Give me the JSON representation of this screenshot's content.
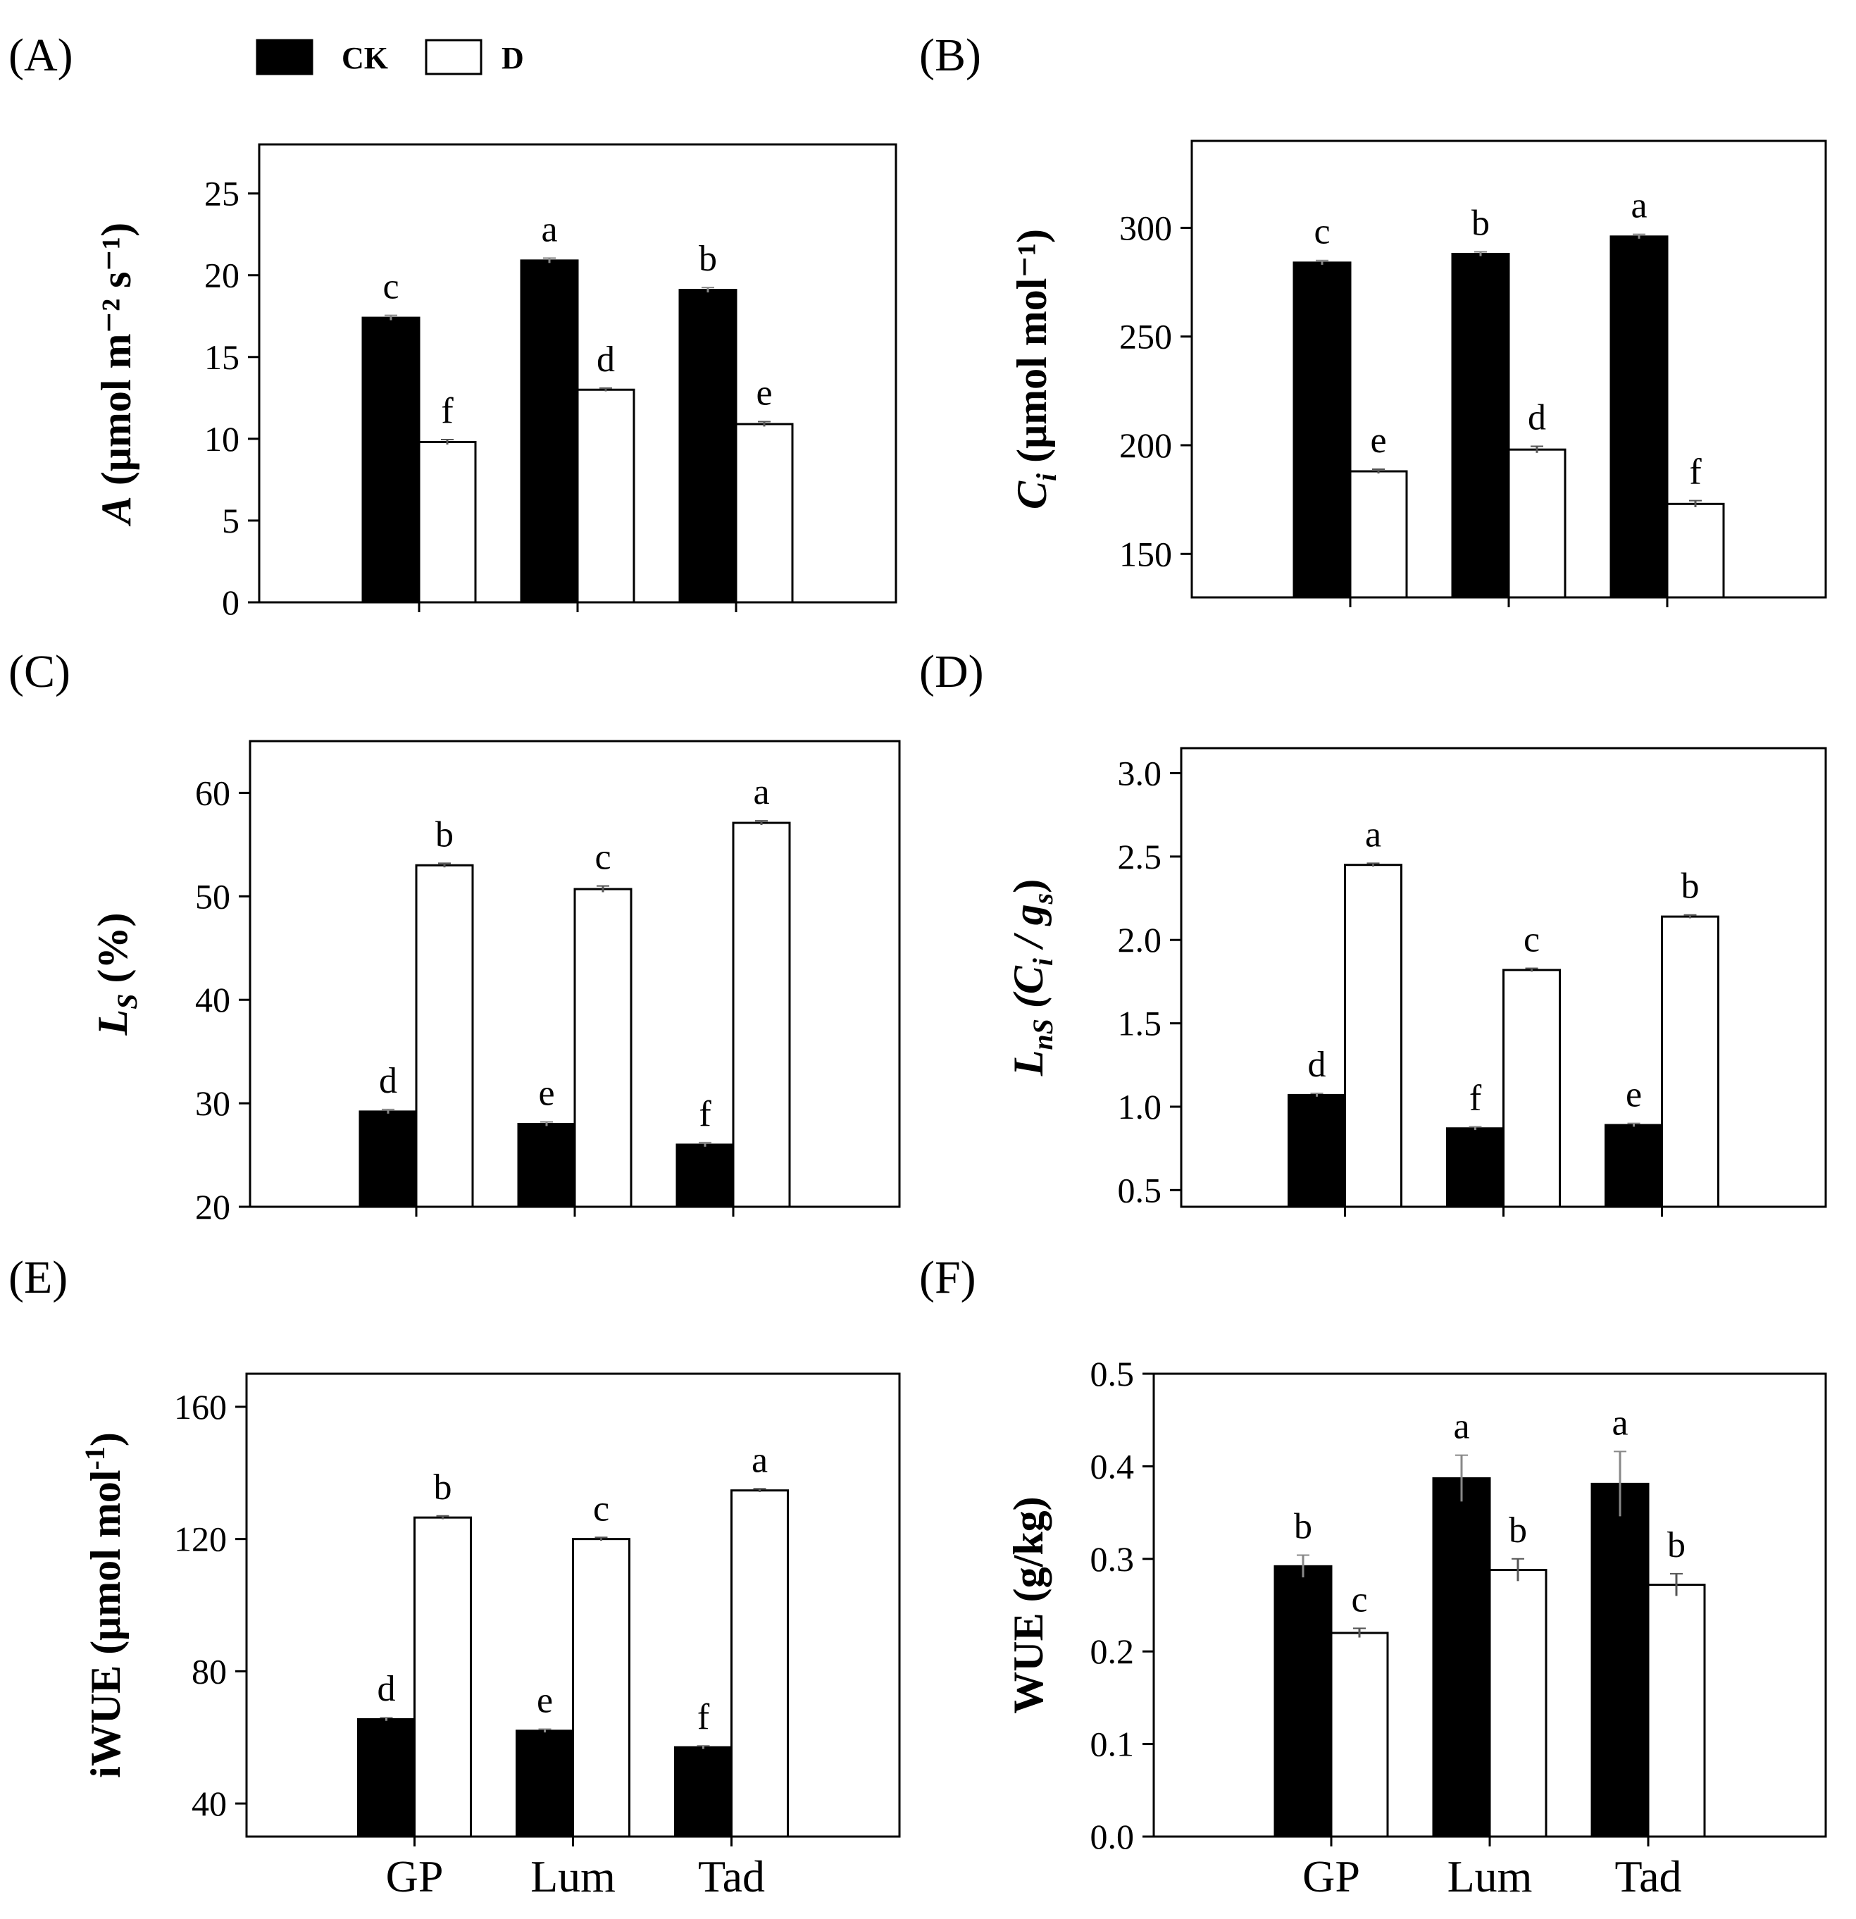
{
  "legend": {
    "items": [
      {
        "label": "CK",
        "fill": "#000000"
      },
      {
        "label": "D",
        "fill": "#ffffff"
      }
    ]
  },
  "chart_data": [
    {
      "panel": "(A)",
      "type": "bar",
      "ylabel": {
        "main": "A",
        "rest": " (μmol m⁻² s⁻¹)"
      },
      "ylim": [
        0,
        28
      ],
      "yticks": [
        0,
        5,
        10,
        15,
        20,
        25
      ],
      "categories": [
        "GP",
        "Lum",
        "Tad"
      ],
      "show_categories": false,
      "series": [
        {
          "name": "CK",
          "values": [
            17.4,
            20.9,
            19.1
          ],
          "errors": [
            0.15,
            0.15,
            0.15
          ],
          "letters": [
            "c",
            "a",
            "b"
          ]
        },
        {
          "name": "D",
          "values": [
            9.8,
            13.0,
            10.9
          ],
          "errors": [
            0.15,
            0.1,
            0.15
          ],
          "letters": [
            "f",
            "d",
            "e"
          ]
        }
      ]
    },
    {
      "panel": "(B)",
      "type": "bar",
      "ylabel": {
        "main": "C",
        "sub": "i",
        "rest": " (μmol mol⁻¹)"
      },
      "ylim": [
        130,
        340
      ],
      "yticks": [
        150,
        200,
        250,
        300
      ],
      "categories": [
        "GP",
        "Lum",
        "Tad"
      ],
      "show_categories": false,
      "series": [
        {
          "name": "CK",
          "values": [
            284,
            288,
            296
          ],
          "errors": [
            1,
            1,
            1
          ],
          "letters": [
            "c",
            "b",
            "a"
          ]
        },
        {
          "name": "D",
          "values": [
            188,
            198,
            173
          ],
          "errors": [
            1,
            1.5,
            1.5
          ],
          "letters": [
            "e",
            "d",
            "f"
          ]
        }
      ]
    },
    {
      "panel": "(C)",
      "type": "bar",
      "ylabel": {
        "main": "L",
        "sub": "S",
        "rest": " (%)"
      },
      "ylim": [
        20,
        65
      ],
      "yticks": [
        20,
        30,
        40,
        50,
        60
      ],
      "categories": [
        "GP",
        "Lum",
        "Tad"
      ],
      "show_categories": false,
      "series": [
        {
          "name": "CK",
          "values": [
            29.2,
            28.0,
            26.0
          ],
          "errors": [
            0.2,
            0.2,
            0.2
          ],
          "letters": [
            "d",
            "e",
            "f"
          ]
        },
        {
          "name": "D",
          "values": [
            53.0,
            50.7,
            57.1
          ],
          "errors": [
            0.2,
            0.3,
            0.2
          ],
          "letters": [
            "b",
            "c",
            "a"
          ]
        }
      ]
    },
    {
      "panel": "(D)",
      "type": "bar",
      "ylabel": {
        "main": "L",
        "sub": "nS",
        "rest": " (C",
        "sub2": "i",
        "rest2": " / g",
        "sub3": "s",
        "rest3": ")"
      },
      "ylim": [
        0.4,
        3.15
      ],
      "yticks": [
        "0.5",
        "1.0",
        "1.5",
        "2.0",
        "2.5",
        "3.0"
      ],
      "categories": [
        "GP",
        "Lum",
        "Tad"
      ],
      "show_categories": false,
      "series": [
        {
          "name": "CK",
          "values": [
            1.07,
            0.87,
            0.89
          ],
          "errors": [
            0.01,
            0.01,
            0.01
          ],
          "letters": [
            "d",
            "f",
            "e"
          ]
        },
        {
          "name": "D",
          "values": [
            2.45,
            1.82,
            2.14
          ],
          "errors": [
            0.01,
            0.01,
            0.01
          ],
          "letters": [
            "a",
            "c",
            "b"
          ]
        }
      ]
    },
    {
      "panel": "(E)",
      "type": "bar",
      "ylabel": {
        "main": "iWUE (μmol mol",
        "sup": "-1",
        "rest": ")"
      },
      "ylim": [
        30,
        170
      ],
      "yticks": [
        40,
        80,
        120,
        160
      ],
      "categories": [
        "GP",
        "Lum",
        "Tad"
      ],
      "show_categories": true,
      "series": [
        {
          "name": "CK",
          "values": [
            65.5,
            62.0,
            57.0
          ],
          "errors": [
            0.5,
            0.5,
            0.5
          ],
          "letters": [
            "d",
            "e",
            "f"
          ]
        },
        {
          "name": "D",
          "values": [
            126.5,
            120.0,
            134.7
          ],
          "errors": [
            0.5,
            0.5,
            0.5
          ],
          "letters": [
            "b",
            "c",
            "a"
          ]
        }
      ]
    },
    {
      "panel": "(F)",
      "type": "bar",
      "ylabel": {
        "main": "WUE (g/kg)"
      },
      "ylim": [
        0,
        0.5
      ],
      "yticks": [
        "0.0",
        "0.1",
        "0.2",
        "0.3",
        "0.4",
        "0.5"
      ],
      "categories": [
        "GP",
        "Lum",
        "Tad"
      ],
      "show_categories": true,
      "series": [
        {
          "name": "CK",
          "values": [
            0.292,
            0.387,
            0.381
          ],
          "errors": [
            0.012,
            0.025,
            0.035
          ],
          "letters": [
            "b",
            "a",
            "a"
          ]
        },
        {
          "name": "D",
          "values": [
            0.22,
            0.288,
            0.272
          ],
          "errors": [
            0.005,
            0.012,
            0.012
          ],
          "letters": [
            "c",
            "b",
            "b"
          ]
        }
      ]
    }
  ]
}
